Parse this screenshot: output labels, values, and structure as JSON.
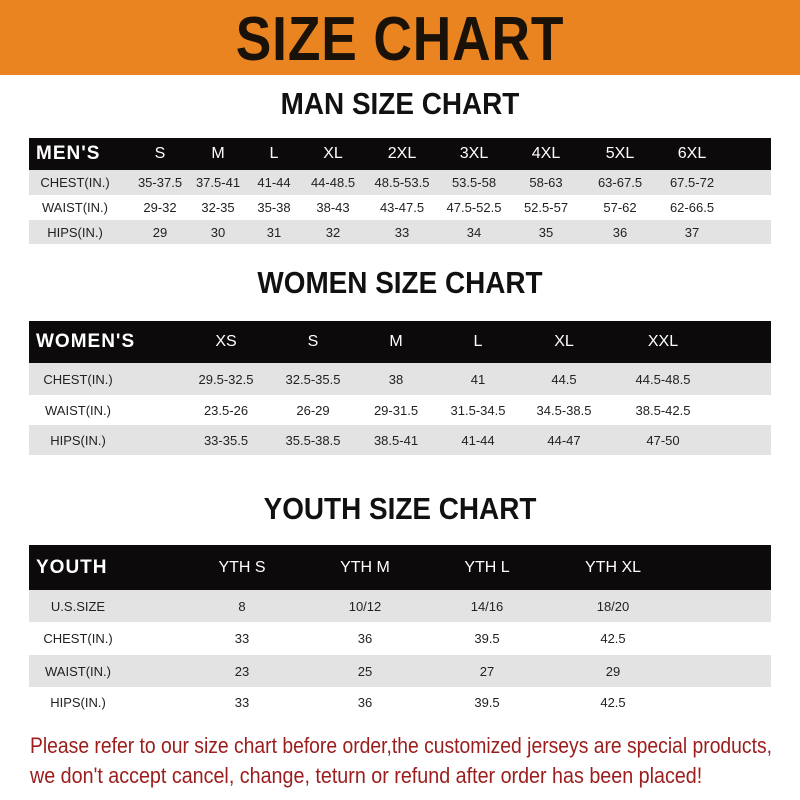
{
  "banner": {
    "title": "SIZE CHART",
    "color": "#e98420"
  },
  "men": {
    "title": "MAN SIZE CHART",
    "header": [
      "MEN'S",
      "S",
      "M",
      "L",
      "XL",
      "2XL",
      "3XL",
      "4XL",
      "5XL",
      "6XL"
    ],
    "rows": [
      [
        "CHEST(IN.)",
        "35-37.5",
        "37.5-41",
        "41-44",
        "44-48.5",
        "48.5-53.5",
        "53.5-58",
        "58-63",
        "63-67.5",
        "67.5-72"
      ],
      [
        "WAIST(IN.)",
        "29-32",
        "32-35",
        "35-38",
        "38-43",
        "43-47.5",
        "47.5-52.5",
        "52.5-57",
        "57-62",
        "62-66.5"
      ],
      [
        "HIPS(IN.)",
        "29",
        "30",
        "31",
        "32",
        "33",
        "34",
        "35",
        "36",
        "37"
      ]
    ]
  },
  "women": {
    "title": "WOMEN SIZE CHART",
    "header": [
      "WOMEN'S",
      "XS",
      "S",
      "M",
      "L",
      "XL",
      "XXL"
    ],
    "rows": [
      [
        "CHEST(IN.)",
        "29.5-32.5",
        "32.5-35.5",
        "38",
        "41",
        "44.5",
        "44.5-48.5"
      ],
      [
        "WAIST(IN.)",
        "23.5-26",
        "26-29",
        "29-31.5",
        "31.5-34.5",
        "34.5-38.5",
        "38.5-42.5"
      ],
      [
        "HIPS(IN.)",
        "33-35.5",
        "35.5-38.5",
        "38.5-41",
        "41-44",
        "44-47",
        "47-50"
      ]
    ]
  },
  "youth": {
    "title": "YOUTH SIZE CHART",
    "header": [
      "YOUTH",
      "YTH S",
      "YTH M",
      "YTH L",
      "YTH XL"
    ],
    "rows": [
      [
        "U.S.SIZE",
        "8",
        "10/12",
        "14/16",
        "18/20"
      ],
      [
        "CHEST(IN.)",
        "33",
        "36",
        "39.5",
        "42.5"
      ],
      [
        "WAIST(IN.)",
        "23",
        "25",
        "27",
        "29"
      ],
      [
        "HIPS(IN.)",
        "33",
        "36",
        "39.5",
        "42.5"
      ]
    ]
  },
  "notice": {
    "line1": "Please refer to our size chart before order,the customized jerseys are special products,",
    "line2": "we don't accept cancel, change, teturn or refund after order has been placed!",
    "color": "#9b1d1d"
  }
}
